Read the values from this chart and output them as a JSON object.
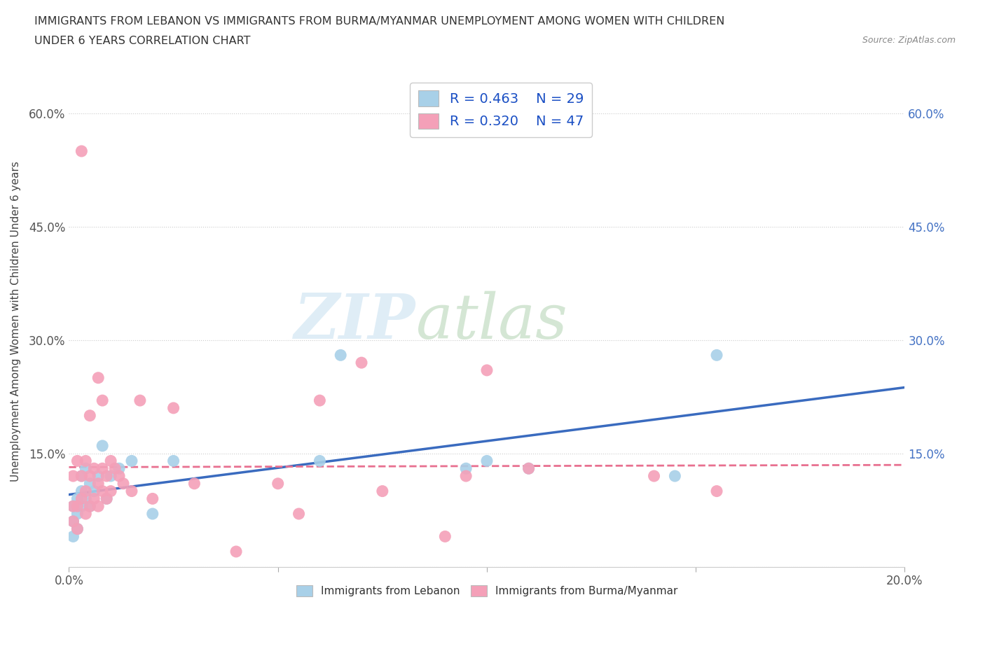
{
  "title_line1": "IMMIGRANTS FROM LEBANON VS IMMIGRANTS FROM BURMA/MYANMAR UNEMPLOYMENT AMONG WOMEN WITH CHILDREN",
  "title_line2": "UNDER 6 YEARS CORRELATION CHART",
  "source_text": "Source: ZipAtlas.com",
  "ylabel": "Unemployment Among Women with Children Under 6 years",
  "xlim": [
    0.0,
    0.2
  ],
  "ylim": [
    0.0,
    0.65
  ],
  "xticks": [
    0.0,
    0.05,
    0.1,
    0.15,
    0.2
  ],
  "xtick_labels": [
    "0.0%",
    "",
    "",
    "",
    "20.0%"
  ],
  "yticks": [
    0.0,
    0.15,
    0.3,
    0.45,
    0.6
  ],
  "ytick_labels": [
    "",
    "15.0%",
    "30.0%",
    "45.0%",
    "60.0%"
  ],
  "ytick_labels_right": [
    "",
    "15.0%",
    "30.0%",
    "45.0%",
    "60.0%"
  ],
  "lebanon_color": "#a8d0e8",
  "burma_color": "#f4a0b8",
  "lebanon_line_color": "#3a6bbf",
  "burma_line_color": "#e87090",
  "watermark_ZIP": "ZIP",
  "watermark_atlas": "atlas",
  "legend_R_lebanon": "R = 0.463",
  "legend_N_lebanon": "N = 29",
  "legend_R_burma": "R = 0.320",
  "legend_N_burma": "N = 47",
  "legend_label_lebanon": "Immigrants from Lebanon",
  "legend_label_burma": "Immigrants from Burma/Myanmar",
  "lebanon_x": [
    0.001,
    0.001,
    0.001,
    0.002,
    0.002,
    0.002,
    0.003,
    0.003,
    0.003,
    0.004,
    0.004,
    0.005,
    0.005,
    0.006,
    0.007,
    0.008,
    0.009,
    0.01,
    0.012,
    0.015,
    0.02,
    0.025,
    0.06,
    0.065,
    0.095,
    0.1,
    0.11,
    0.145,
    0.155
  ],
  "lebanon_y": [
    0.04,
    0.06,
    0.08,
    0.05,
    0.07,
    0.09,
    0.08,
    0.1,
    0.12,
    0.09,
    0.13,
    0.08,
    0.11,
    0.1,
    0.12,
    0.16,
    0.09,
    0.12,
    0.13,
    0.14,
    0.07,
    0.14,
    0.14,
    0.28,
    0.13,
    0.14,
    0.13,
    0.12,
    0.28
  ],
  "burma_x": [
    0.001,
    0.001,
    0.001,
    0.002,
    0.002,
    0.002,
    0.003,
    0.003,
    0.003,
    0.004,
    0.004,
    0.004,
    0.005,
    0.005,
    0.005,
    0.006,
    0.006,
    0.007,
    0.007,
    0.007,
    0.008,
    0.008,
    0.008,
    0.009,
    0.009,
    0.01,
    0.01,
    0.011,
    0.012,
    0.013,
    0.015,
    0.017,
    0.02,
    0.025,
    0.03,
    0.04,
    0.05,
    0.055,
    0.06,
    0.07,
    0.075,
    0.09,
    0.095,
    0.1,
    0.11,
    0.14,
    0.155
  ],
  "burma_y": [
    0.06,
    0.08,
    0.12,
    0.05,
    0.08,
    0.14,
    0.09,
    0.12,
    0.55,
    0.07,
    0.1,
    0.14,
    0.08,
    0.12,
    0.2,
    0.09,
    0.13,
    0.08,
    0.11,
    0.25,
    0.1,
    0.13,
    0.22,
    0.09,
    0.12,
    0.1,
    0.14,
    0.13,
    0.12,
    0.11,
    0.1,
    0.22,
    0.09,
    0.21,
    0.11,
    0.02,
    0.11,
    0.07,
    0.22,
    0.27,
    0.1,
    0.04,
    0.12,
    0.26,
    0.13,
    0.12,
    0.1
  ],
  "background_color": "#ffffff",
  "grid_color": "#cccccc",
  "legend_text_color": "#1a4fc4",
  "title_color": "#333333",
  "tick_color": "#555555",
  "right_tick_color": "#4472c4"
}
